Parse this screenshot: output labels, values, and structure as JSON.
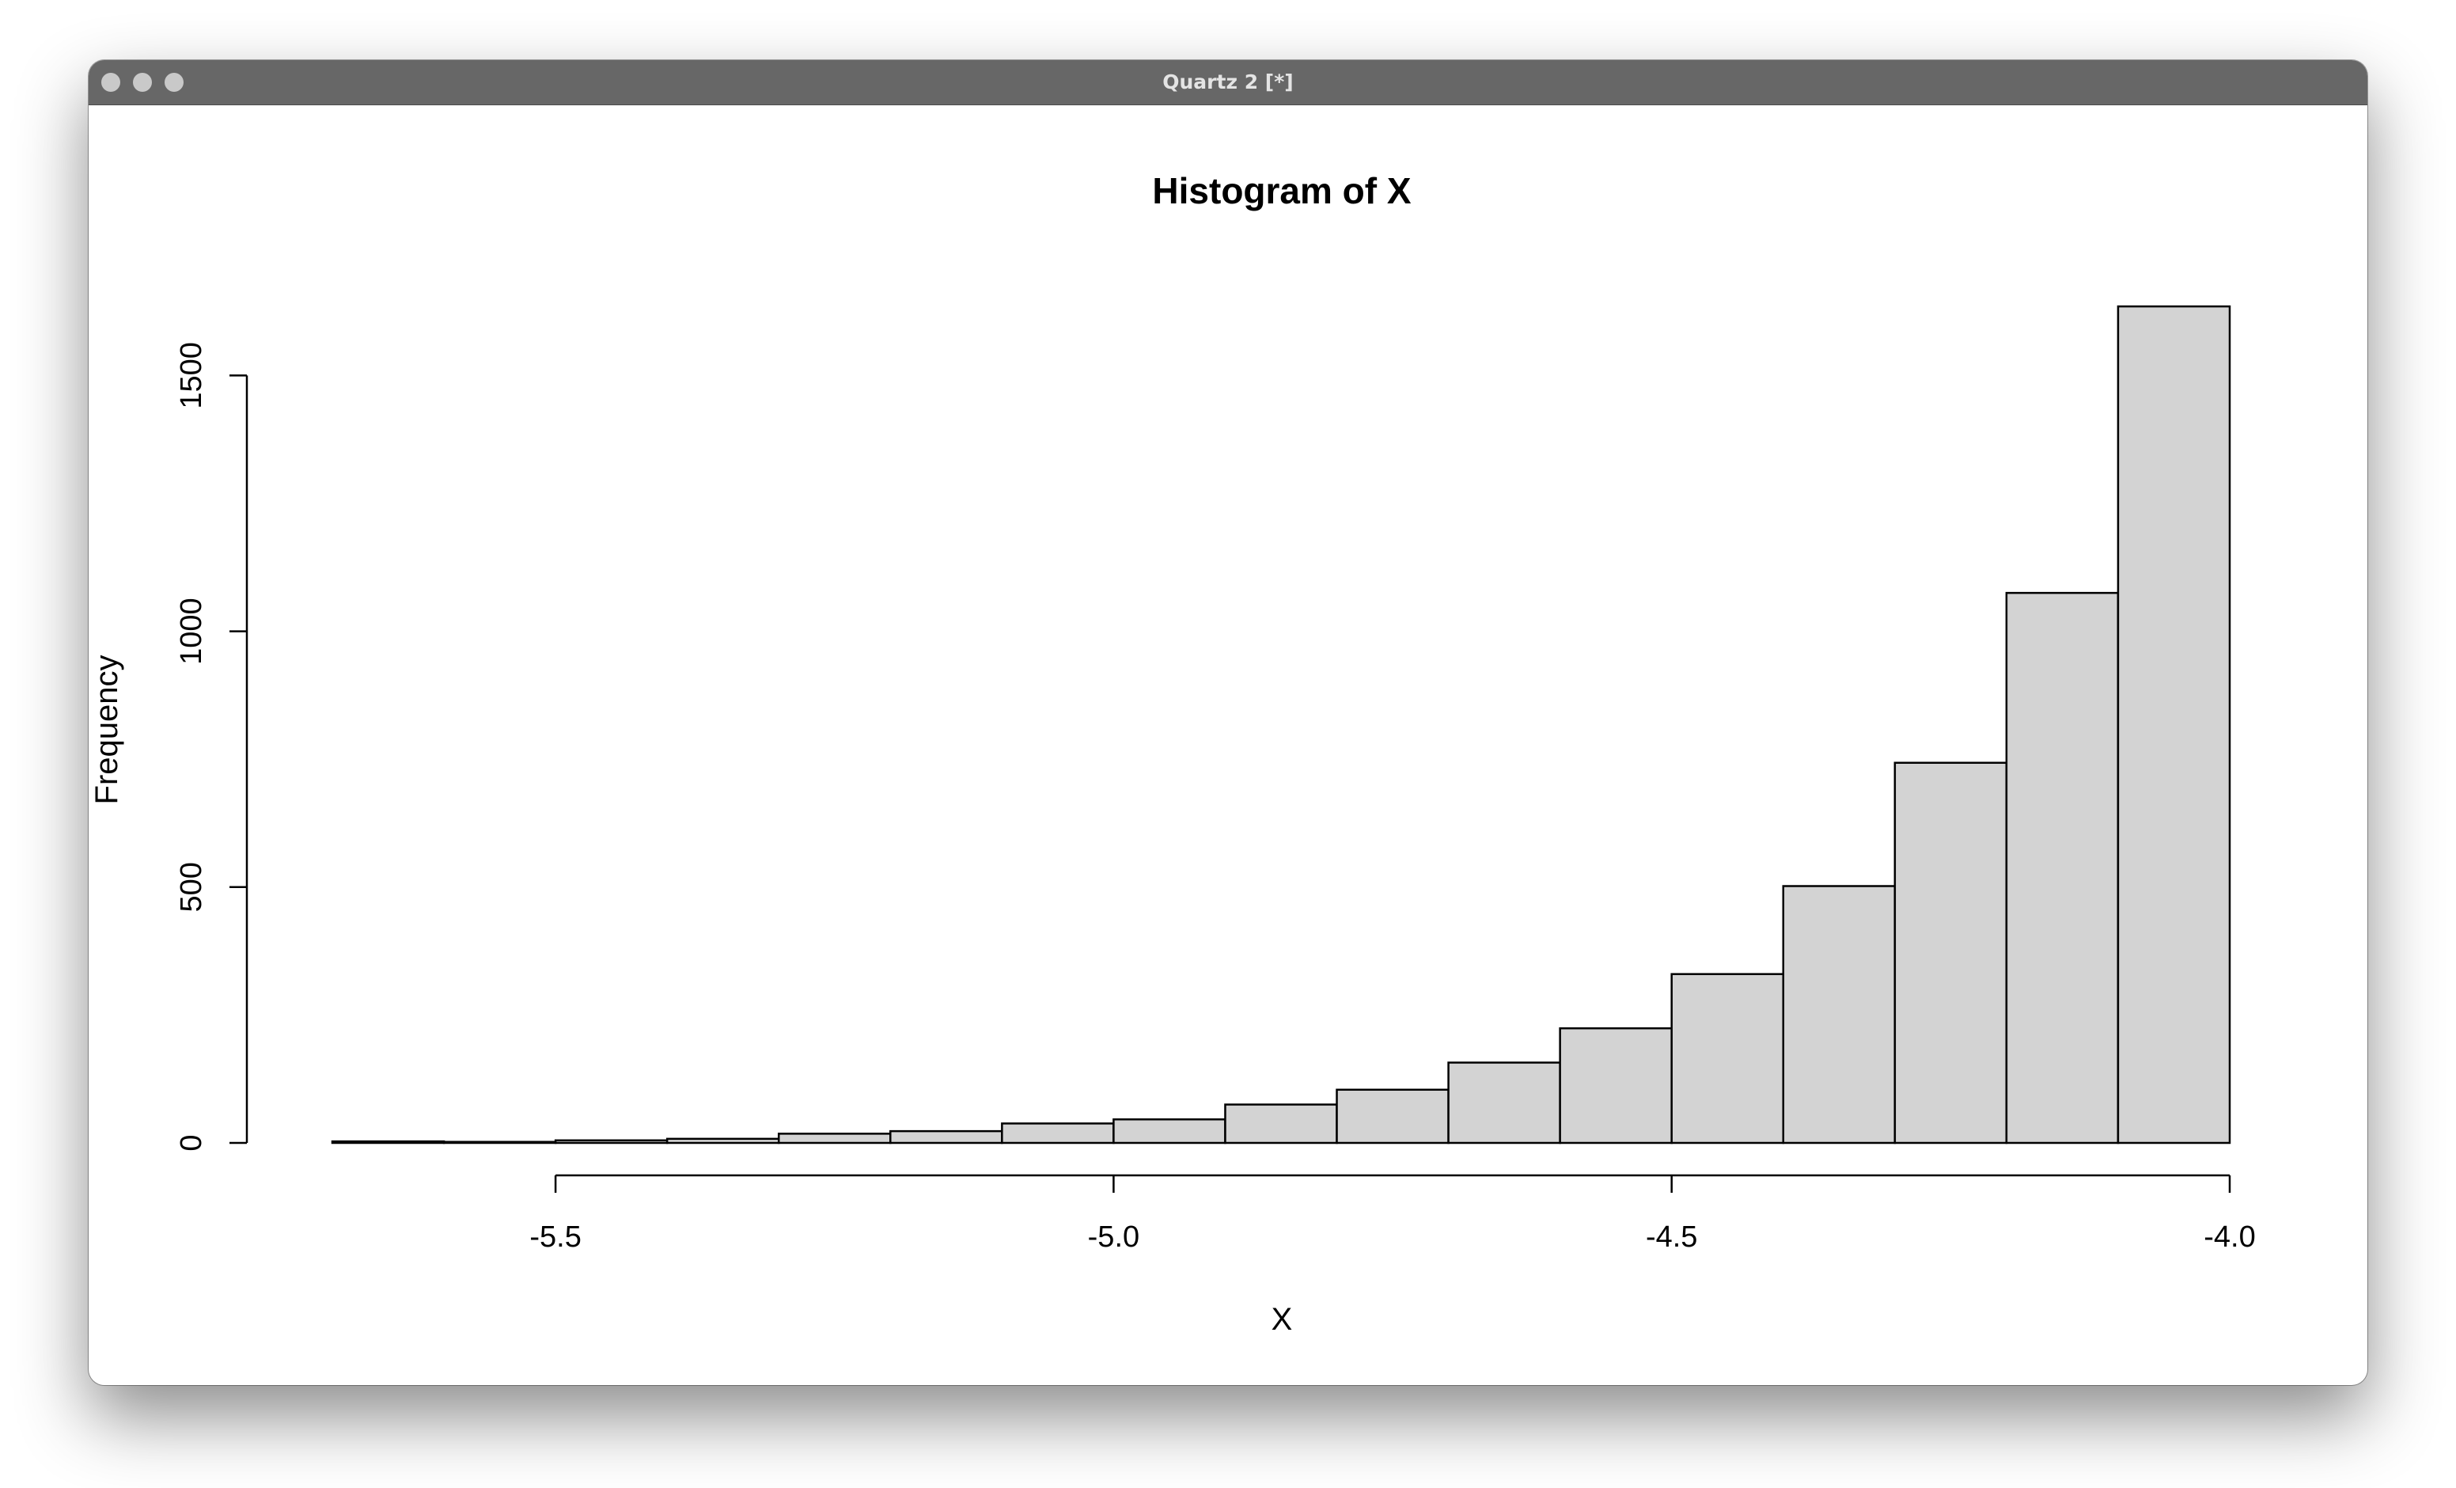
{
  "window": {
    "title": "Quartz 2 [*]",
    "controls": [
      "close",
      "minimize",
      "zoom"
    ]
  },
  "chart_data": {
    "type": "bar",
    "title": "Histogram of X",
    "xlabel": "X",
    "ylabel": "Frequency",
    "bin_edges": [
      -5.7,
      -5.6,
      -5.5,
      -5.4,
      -5.3,
      -5.2,
      -5.1,
      -5.0,
      -4.9,
      -4.8,
      -4.7,
      -4.6,
      -4.5,
      -4.4,
      -4.3,
      -4.2,
      -4.1,
      -4.0
    ],
    "values": [
      3,
      2,
      5,
      8,
      18,
      23,
      38,
      46,
      75,
      104,
      157,
      224,
      330,
      502,
      743,
      1075,
      1635
    ],
    "xlim": [
      -5.7,
      -4.0
    ],
    "ylim": [
      0,
      1650
    ],
    "x_ticks": [
      -5.5,
      -5.0,
      -4.5,
      -4.0
    ],
    "x_tick_labels": [
      "-5.5",
      "-5.0",
      "-4.5",
      "-4.0"
    ],
    "y_ticks": [
      0,
      500,
      1000,
      1500
    ],
    "y_tick_labels": [
      "0",
      "500",
      "1000",
      "1500"
    ],
    "bar_fill": "#d3d3d3",
    "bar_stroke": "#000000",
    "grid": false,
    "legend": "none"
  }
}
